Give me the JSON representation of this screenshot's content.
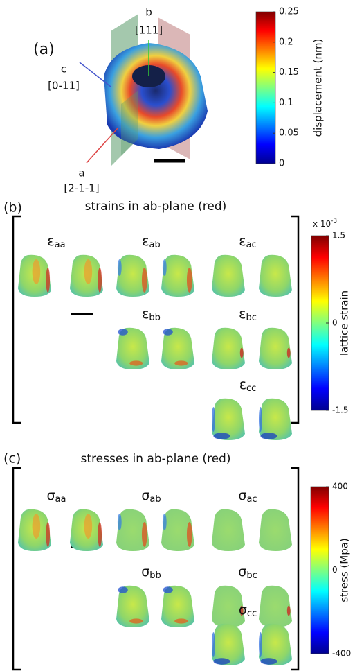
{
  "panel_a": {
    "label": "(a)",
    "axes": {
      "b": {
        "name": "b",
        "direction": "[111]"
      },
      "c": {
        "name": "c",
        "direction": "[0-11]"
      },
      "a": {
        "name": "a",
        "direction": "[2-1-1]"
      }
    },
    "colorbar": {
      "label": "displacement (nm)",
      "lim": [
        0,
        0.25
      ],
      "ticks": [
        0,
        0.05,
        0.1,
        0.15,
        0.2,
        0.25
      ]
    }
  },
  "panel_b": {
    "label": "(b)",
    "title": "strains in ab-plane (red)",
    "components": [
      {
        "symbol": "ε",
        "subscript": "aa"
      },
      {
        "symbol": "ε",
        "subscript": "ab"
      },
      {
        "symbol": "ε",
        "subscript": "ac"
      },
      {
        "symbol": "ε",
        "subscript": "bb"
      },
      {
        "symbol": "ε",
        "subscript": "bc"
      },
      {
        "symbol": "ε",
        "subscript": "cc"
      }
    ],
    "colorbar": {
      "label": "lattice strain",
      "multiplier": {
        "base": "x 10",
        "exponent": "-3"
      },
      "lim": [
        -1.5,
        1.5
      ],
      "ticks": [
        -1.5,
        0,
        1.5
      ]
    }
  },
  "panel_c": {
    "label": "(c)",
    "title": "stresses in ab-plane (red)",
    "components": [
      {
        "symbol": "σ",
        "subscript": "aa"
      },
      {
        "symbol": "σ",
        "subscript": "ab"
      },
      {
        "symbol": "σ",
        "subscript": "ac"
      },
      {
        "symbol": "σ",
        "subscript": "bb"
      },
      {
        "symbol": "σ",
        "subscript": "bc"
      },
      {
        "symbol": "σ",
        "subscript": "cc"
      }
    ],
    "colorbar": {
      "label": "stress (Mpa)",
      "lim": [
        -400,
        400
      ],
      "ticks": [
        -400,
        0,
        400
      ]
    }
  }
}
